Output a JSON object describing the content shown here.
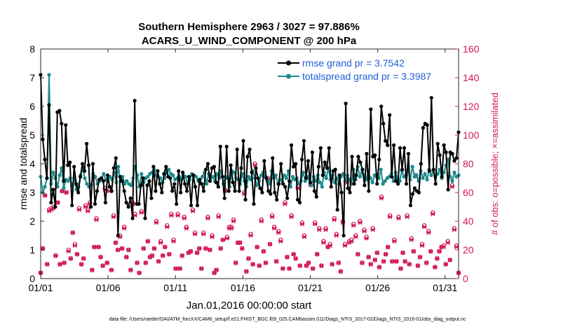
{
  "chart_data": {
    "type": "line",
    "title": "Southern Hemisphere 2963 / 3027 = 97.886%",
    "subtitle": "ACARS_U_WIND_COMPONENT @ 200 hPa",
    "xlabel": "Jan.01,2016 00:00:00 start",
    "ylabel_left": "rmse and totalspread",
    "ylabel_right": "# of obs: o=possible; ×=assimilated",
    "xlim": [
      1,
      32
    ],
    "ylim_left": [
      0,
      8
    ],
    "ylim_right": [
      0,
      160
    ],
    "x_ticks": [
      1,
      6,
      11,
      16,
      21,
      26,
      31
    ],
    "x_tick_labels": [
      "01/01",
      "01/06",
      "01/11",
      "01/16",
      "01/21",
      "01/26",
      "01/31"
    ],
    "y_ticks_left": [
      0,
      1,
      2,
      3,
      4,
      5,
      6,
      7,
      8
    ],
    "y_ticks_right": [
      0,
      20,
      40,
      60,
      80,
      100,
      120,
      140,
      160
    ],
    "footer": "data file: /Users/raeder/DAI/ATM_forcXX/CAM6_setup/f.e21.FHIST_BGC.f09_025.CAM6assim.011/Diags_NTrS_2017-02/Diags_NTrS_2016-01/obs_diag_output.nc",
    "colors": {
      "rmse": "#000000",
      "spread": "#1a8a8a",
      "obs": "#d1165a",
      "legend_text": "#1f5fd6"
    },
    "series": [
      {
        "name": "rmse grand pr = 3.7542",
        "axis": "left",
        "values": [
          7.1,
          4.85,
          4.15,
          3.5,
          6.05,
          2.65,
          3.1,
          2.5,
          5.8,
          5.85,
          5.4,
          3.4,
          5.35,
          3.95,
          4.05,
          2.55,
          3.9,
          3.3,
          3.0,
          3.55,
          4.0,
          3.75,
          4.7,
          3.95,
          2.5,
          4.0,
          2.6,
          3.05,
          3.45,
          3.5,
          3.4,
          2.65,
          3.6,
          3.2,
          3.05,
          3.85,
          4.2,
          1.5,
          3.55,
          3.4,
          3.05,
          2.65,
          2.5,
          2.8,
          2.1,
          6.2,
          2.6,
          2.6,
          3.25,
          3.5,
          2.1,
          3.25,
          3.4,
          2.8,
          3.9,
          3.05,
          3.75,
          3.3,
          3.0,
          3.65,
          3.9,
          3.55,
          3.5,
          3.05,
          3.3,
          2.6,
          3.75,
          3.0,
          3.7,
          3.3,
          3.05,
          3.55,
          2.55,
          3.6,
          3.2,
          2.55,
          3.45,
          3.3,
          3.05,
          3.8,
          4.0,
          3.4,
          3.85,
          3.9,
          3.35,
          3.2,
          4.6,
          3.55,
          2.8,
          4.6,
          3.05,
          3.95,
          3.35,
          3.05,
          4.5,
          3.05,
          3.85,
          4.8,
          2.75,
          4.25,
          4.5,
          3.7,
          2.6,
          3.85,
          3.5,
          3.15,
          3.0,
          4.1,
          3.5,
          3.05,
          2.95,
          4.2,
          3.0,
          2.75,
          3.3,
          4.0,
          3.3,
          3.2,
          2.8,
          3.4,
          4.65,
          3.9,
          4.0,
          2.75,
          2.65,
          4.15,
          4.8,
          3.5,
          4.1,
          3.35,
          4.4,
          3.05,
          2.85,
          3.9,
          4.55,
          3.6,
          4.05,
          3.85,
          4.55,
          3.2,
          3.75,
          3.8,
          2.4,
          3.6,
          3.0,
          1.5,
          6.1,
          3.15,
          3.0,
          4.25,
          3.3,
          3.6,
          4.25,
          4.05,
          3.8,
          3.25,
          4.35,
          3.05,
          5.9,
          4.25,
          4.3,
          3.3,
          4.15,
          6.0,
          5.4,
          4.8,
          4.65,
          5.7,
          3.55,
          4.65,
          3.4,
          3.3,
          4.55,
          3.8,
          4.55,
          3.3,
          4.35,
          2.55,
          2.95,
          3.15,
          3.05,
          3.0,
          4.0,
          5.25,
          5.4,
          5.35,
          3.75,
          6.3,
          3.8,
          3.3,
          4.7,
          4.3,
          3.55,
          4.65,
          4.4,
          3.1,
          4.4,
          4.35,
          4.1,
          4.2,
          5.1
        ]
      },
      {
        "name": "totalspread grand pr = 3.3987",
        "axis": "left",
        "values": [
          3.55,
          3.0,
          3.2,
          3.5,
          7.1,
          3.3,
          3.7,
          3.5,
          3.2,
          3.6,
          3.85,
          3.15,
          3.45,
          3.4,
          3.5,
          3.25,
          3.5,
          3.1,
          3.2,
          3.6,
          3.85,
          3.5,
          3.3,
          3.2,
          3.25,
          3.65,
          3.55,
          3.3,
          3.4,
          3.5,
          3.65,
          3.45,
          3.4,
          3.55,
          3.45,
          3.7,
          3.35,
          3.9,
          3.4,
          3.55,
          3.3,
          3.4,
          3.3,
          3.25,
          3.5,
          3.9,
          3.6,
          3.2,
          3.65,
          3.35,
          3.5,
          3.55,
          3.65,
          3.7,
          3.8,
          3.6,
          3.55,
          3.5,
          3.35,
          3.5,
          3.7,
          3.8,
          3.65,
          3.6,
          3.45,
          3.5,
          3.55,
          3.45,
          3.6,
          3.55,
          3.3,
          3.45,
          3.65,
          3.6,
          3.55,
          3.4,
          3.45,
          3.55,
          3.7,
          3.3,
          3.65,
          3.5,
          3.55,
          3.4,
          3.65,
          3.5,
          3.75,
          3.3,
          3.55,
          3.5,
          3.2,
          3.75,
          3.7,
          3.5,
          3.45,
          3.3,
          3.65,
          3.4,
          3.2,
          3.55,
          3.45,
          3.75,
          3.5,
          3.25,
          3.4,
          3.6,
          3.7,
          3.55,
          3.4,
          3.3,
          3.75,
          3.5,
          3.6,
          3.3,
          3.45,
          3.4,
          3.6,
          3.5,
          3.75,
          3.2,
          3.55,
          3.45,
          3.5,
          3.3,
          3.4,
          3.7,
          3.4,
          3.55,
          3.45,
          3.25,
          3.55,
          3.4,
          3.6,
          3.35,
          3.2,
          3.7,
          3.5,
          3.85,
          3.45,
          3.6,
          3.35,
          3.5,
          3.3,
          3.55,
          3.65,
          3.4,
          3.6,
          3.45,
          3.3,
          3.8,
          3.45,
          3.9,
          3.55,
          3.7,
          3.6,
          3.45,
          3.75,
          3.5,
          3.35,
          3.6,
          3.55,
          3.5,
          3.8,
          3.3,
          3.4,
          3.5,
          3.55,
          3.65,
          3.4,
          3.7,
          3.5,
          3.4,
          3.75,
          3.55,
          3.6,
          3.8,
          3.45,
          3.9,
          3.55,
          3.6,
          3.4,
          3.75,
          3.5,
          3.65,
          3.45,
          3.8,
          3.6,
          3.75,
          3.55,
          3.65,
          3.8,
          3.5,
          3.7,
          3.95,
          4.15,
          3.55,
          3.4,
          3.7,
          3.55,
          3.6
        ]
      },
      {
        "name": "possible observations",
        "axis": "right",
        "values": [
          4,
          21,
          58,
          10,
          48,
          49,
          50,
          16,
          53,
          10,
          61,
          11,
          60,
          20,
          14,
          32,
          24,
          17,
          49,
          10,
          14,
          51,
          48,
          53,
          6,
          22,
          42,
          22,
          15,
          9,
          63,
          11,
          62,
          6,
          44,
          25,
          20,
          30,
          21,
          36,
          15,
          20,
          6,
          53,
          45,
          11,
          4,
          47,
          21,
          11,
          26,
          15,
          16,
          21,
          40,
          12,
          26,
          16,
          22,
          37,
          17,
          45,
          27,
          7,
          45,
          7,
          16,
          43,
          36,
          18,
          19,
          48,
          32,
          18,
          21,
          7,
          32,
          21,
          43,
          20,
          30,
          4,
          6,
          44,
          21,
          27,
          62,
          29,
          36,
          36,
          41,
          11,
          25,
          25,
          21,
          60,
          5,
          14,
          31,
          10,
          80,
          22,
          9,
          41,
          19,
          11,
          70,
          24,
          44,
          36,
          12,
          33,
          27,
          7,
          53,
          15,
          7,
          44,
          17,
          14,
          64,
          9,
          39,
          30,
          9,
          11,
          66,
          7,
          39,
          17,
          35,
          9,
          26,
          35,
          22,
          24,
          10,
          42,
          31,
          11,
          5,
          40,
          24,
          68,
          26,
          27,
          38,
          30,
          17,
          40,
          11,
          34,
          29,
          15,
          10,
          35,
          13,
          18,
          8,
          57,
          12,
          17,
          22,
          44,
          12,
          27,
          12,
          43,
          7,
          18,
          12,
          44,
          10,
          28,
          19,
          72,
          9,
          15,
          24,
          37,
          11,
          33,
          19,
          46,
          8,
          14,
          19,
          22,
          23,
          10,
          26,
          13,
          65,
          35,
          23,
          4
        ]
      },
      {
        "name": "assimilated observations",
        "axis": "right",
        "values": [
          4,
          21,
          58,
          10,
          47,
          48,
          49,
          16,
          53,
          10,
          61,
          11,
          60,
          19,
          14,
          32,
          23,
          17,
          48,
          10,
          14,
          50,
          47,
          52,
          6,
          22,
          41,
          22,
          15,
          9,
          62,
          11,
          61,
          6,
          43,
          25,
          20,
          29,
          21,
          35,
          15,
          20,
          6,
          52,
          44,
          11,
          4,
          46,
          21,
          11,
          26,
          15,
          16,
          21,
          39,
          12,
          25,
          16,
          22,
          36,
          17,
          44,
          26,
          7,
          44,
          7,
          16,
          42,
          35,
          18,
          19,
          47,
          31,
          18,
          21,
          7,
          31,
          21,
          42,
          20,
          29,
          4,
          6,
          43,
          21,
          27,
          61,
          28,
          35,
          35,
          40,
          11,
          25,
          25,
          21,
          59,
          5,
          14,
          30,
          10,
          79,
          22,
          9,
          40,
          19,
          11,
          69,
          24,
          43,
          35,
          12,
          32,
          26,
          7,
          52,
          15,
          7,
          43,
          17,
          14,
          63,
          9,
          38,
          29,
          9,
          11,
          65,
          7,
          38,
          17,
          34,
          9,
          25,
          34,
          22,
          23,
          10,
          41,
          30,
          11,
          5,
          39,
          23,
          67,
          25,
          26,
          37,
          29,
          17,
          39,
          11,
          33,
          28,
          15,
          10,
          34,
          13,
          18,
          8,
          56,
          12,
          17,
          22,
          43,
          12,
          26,
          12,
          42,
          7,
          18,
          12,
          43,
          10,
          27,
          19,
          71,
          9,
          15,
          23,
          36,
          11,
          32,
          19,
          45,
          8,
          14,
          19,
          22,
          22,
          10,
          25,
          13,
          64,
          34,
          22,
          4
        ]
      }
    ]
  }
}
